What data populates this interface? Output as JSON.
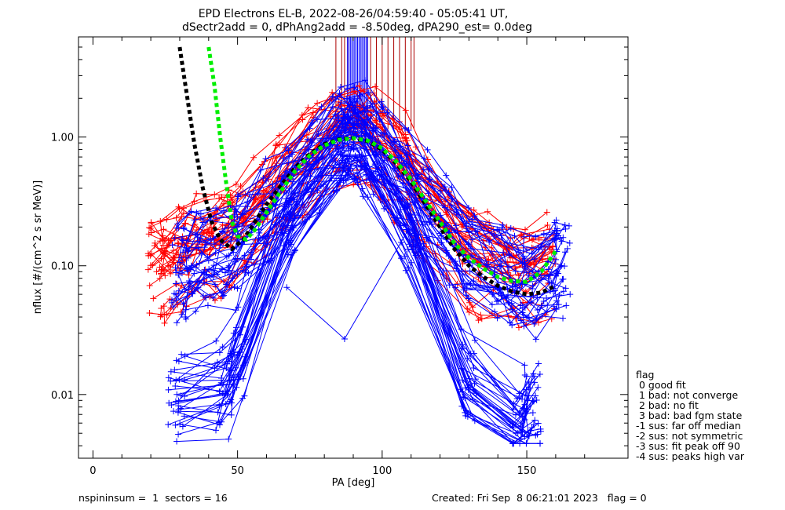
{
  "chart_data": {
    "type": "line",
    "title": "EPD Electrons EL-B, 2022-08-26/04:59:40 - 05:05:41 UT,",
    "subtitle": "dSectr2add = 0, dPhAng2add = -8.50deg, dPA290_est=   0.0deg",
    "xlabel": "PA [deg]",
    "ylabel": "nflux [#/(cm^2 s sr MeV)]",
    "xlim": [
      -5,
      185
    ],
    "ylim": [
      0.0032,
      6.0
    ],
    "yscale": "log",
    "x_ticks": [
      0,
      50,
      100,
      150
    ],
    "y_ticks": [
      {
        "value": 1.0,
        "label": "1.00"
      },
      {
        "value": 0.1,
        "label": "0.10"
      },
      {
        "value": 0.01,
        "label": "0.01"
      }
    ],
    "grid": false,
    "series": [
      {
        "color": "#ff0000",
        "marker": "plus",
        "x": [
          22,
          26,
          31,
          38,
          45,
          50,
          58,
          66,
          75,
          84,
          91,
          98,
          106,
          113,
          121,
          129,
          136,
          144,
          150,
          157
        ],
        "y": [
          0.09,
          0.1,
          0.11,
          0.13,
          0.15,
          0.17,
          0.25,
          0.38,
          0.62,
          1.0,
          1.05,
          0.85,
          0.55,
          0.33,
          0.2,
          0.12,
          0.095,
          0.08,
          0.075,
          0.09
        ]
      },
      {
        "color": "#0000ff",
        "marker": "plus",
        "x": [
          30,
          34,
          40,
          47,
          52,
          60,
          68,
          77,
          85,
          92,
          99,
          107,
          115,
          123,
          131,
          139,
          146,
          152,
          158,
          162
        ],
        "y": [
          0.09,
          0.1,
          0.11,
          0.12,
          0.16,
          0.25,
          0.4,
          0.65,
          1.0,
          1.0,
          0.8,
          0.5,
          0.3,
          0.18,
          0.12,
          0.09,
          0.075,
          0.07,
          0.085,
          0.1
        ]
      },
      {
        "color": "#0000ff",
        "marker": "plus",
        "x": [
          29,
          45,
          50,
          67,
          87,
          89,
          93,
          109,
          130,
          148,
          152
        ],
        "y": [
          0.01,
          0.012,
          0.02,
          0.25,
          0.9,
          1.1,
          0.95,
          0.19,
          0.012,
          0.006,
          0.009
        ]
      },
      {
        "color": "#0000ff",
        "marker": "plus",
        "x": [
          67,
          87,
          109
        ],
        "y": [
          0.068,
          0.027,
          0.19
        ]
      },
      {
        "color": "#000000",
        "style": "dashed",
        "x": [
          30,
          32,
          35,
          38,
          41,
          44,
          48,
          52,
          56,
          60,
          65,
          70,
          75,
          80,
          85,
          90,
          95,
          100,
          105,
          110,
          115,
          120,
          125,
          130,
          135,
          140,
          145,
          150,
          155,
          160
        ],
        "y": [
          5.0,
          2.5,
          0.9,
          0.4,
          0.22,
          0.16,
          0.135,
          0.16,
          0.22,
          0.3,
          0.42,
          0.58,
          0.74,
          0.88,
          0.96,
          0.98,
          0.93,
          0.8,
          0.62,
          0.45,
          0.3,
          0.2,
          0.135,
          0.1,
          0.082,
          0.07,
          0.063,
          0.06,
          0.062,
          0.07
        ]
      },
      {
        "color": "#00ee00",
        "style": "dashed",
        "x": [
          40,
          42,
          44,
          46,
          48,
          50,
          53,
          56,
          60,
          65,
          70,
          75,
          80,
          85,
          90,
          95,
          100,
          105,
          110,
          115,
          120,
          125,
          130,
          135,
          140,
          145,
          150,
          155,
          160
        ],
        "y": [
          5.0,
          2.5,
          1.0,
          0.45,
          0.22,
          0.17,
          0.16,
          0.19,
          0.26,
          0.38,
          0.55,
          0.72,
          0.86,
          0.95,
          0.98,
          0.94,
          0.82,
          0.64,
          0.47,
          0.32,
          0.22,
          0.15,
          0.115,
          0.095,
          0.082,
          0.076,
          0.075,
          0.09,
          0.13
        ]
      }
    ],
    "spikes": {
      "color_red": "#aa0000",
      "color_blue": "#0000ff",
      "red_x": [
        84,
        86,
        87,
        88,
        95,
        96,
        98,
        100,
        102,
        104,
        106,
        108,
        110,
        111
      ],
      "blue_x_range": [
        88,
        95
      ],
      "y_base": 1.15
    }
  },
  "legend": {
    "header": "flag",
    "items": [
      " 0 good fit",
      " 1 bad: not converge",
      " 2 bad: no fit",
      " 3 bad: bad fgm state",
      "-1 sus: far off median",
      "-2 sus: not symmetric",
      "-3 sus: fit peak off 90",
      "-4 sus: peaks high var"
    ]
  },
  "footer": {
    "left": "nspininsum =  1  sectors = 16",
    "right": "Created: Fri Sep  8 06:21:01 2023   flag = 0"
  }
}
